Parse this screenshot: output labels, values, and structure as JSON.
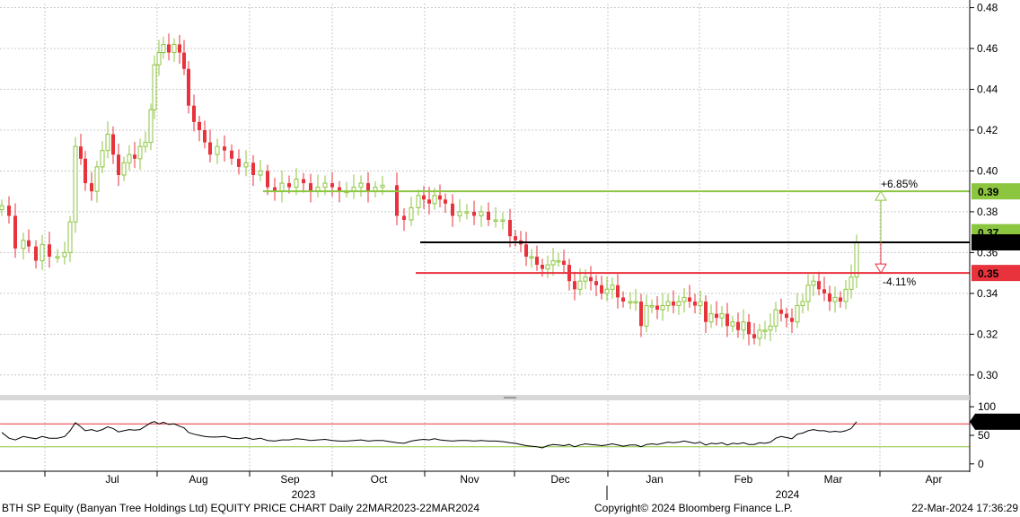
{
  "chart_data": {
    "type": "candlestick",
    "price_axis": {
      "ticks": [
        "0.48",
        "0.46",
        "0.44",
        "0.42",
        "0.40",
        "0.38",
        "0.36",
        "0.34",
        "0.32",
        "0.30"
      ],
      "ylim": [
        0.292,
        0.482
      ]
    },
    "rsi_axis": {
      "ticks": [
        "100",
        "50",
        "0"
      ],
      "ylim": [
        -5,
        105
      ]
    },
    "x_ticks": [
      "Jul",
      "Aug",
      "Sep",
      "Oct",
      "Nov",
      "Dec",
      "Jan",
      "Feb",
      "Mar",
      "Apr"
    ],
    "year_labels": [
      "2023",
      "2024"
    ],
    "grid": true,
    "levels": [
      {
        "value": 0.39,
        "label": "0.39",
        "color": "#8cc63f",
        "annotation": "+6.85%"
      },
      {
        "value": 0.37,
        "label": "0.37",
        "color": "#8cc63f",
        "annotation": ""
      },
      {
        "value": 0.365,
        "label": "0.365",
        "color": "#000000",
        "annotation": ""
      },
      {
        "value": 0.35,
        "label": "0.35",
        "color": "#e8323c",
        "annotation": "-4.11%"
      }
    ],
    "rsi_last": "73.8392",
    "rsi_levels": [
      70,
      30
    ],
    "up_color": "#8cc63f",
    "down_color": "#e8323c",
    "close_points": [
      [
        0,
        0.383
      ],
      [
        8,
        0.378
      ],
      [
        15,
        0.362
      ],
      [
        24,
        0.366
      ],
      [
        30,
        0.363
      ],
      [
        38,
        0.356
      ],
      [
        45,
        0.364
      ],
      [
        53,
        0.358
      ],
      [
        62,
        0.358
      ],
      [
        70,
        0.36
      ],
      [
        76,
        0.375
      ],
      [
        82,
        0.412
      ],
      [
        88,
        0.406
      ],
      [
        93,
        0.394
      ],
      [
        100,
        0.39
      ],
      [
        106,
        0.402
      ],
      [
        112,
        0.41
      ],
      [
        118,
        0.418
      ],
      [
        124,
        0.408
      ],
      [
        130,
        0.398
      ],
      [
        136,
        0.404
      ],
      [
        142,
        0.408
      ],
      [
        148,
        0.406
      ],
      [
        154,
        0.412
      ],
      [
        160,
        0.414
      ],
      [
        166,
        0.43
      ],
      [
        170,
        0.452
      ],
      [
        175,
        0.458
      ],
      [
        180,
        0.462
      ],
      [
        186,
        0.458
      ],
      [
        192,
        0.462
      ],
      [
        198,
        0.458
      ],
      [
        203,
        0.45
      ],
      [
        208,
        0.432
      ],
      [
        214,
        0.424
      ],
      [
        220,
        0.42
      ],
      [
        226,
        0.414
      ],
      [
        232,
        0.408
      ],
      [
        240,
        0.412
      ],
      [
        248,
        0.41
      ],
      [
        256,
        0.406
      ],
      [
        264,
        0.402
      ],
      [
        272,
        0.404
      ],
      [
        280,
        0.398
      ],
      [
        288,
        0.4
      ],
      [
        296,
        0.392
      ],
      [
        304,
        0.39
      ],
      [
        312,
        0.394
      ],
      [
        320,
        0.392
      ],
      [
        328,
        0.396
      ],
      [
        336,
        0.394
      ],
      [
        344,
        0.39
      ],
      [
        352,
        0.392
      ],
      [
        360,
        0.394
      ],
      [
        368,
        0.392
      ],
      [
        376,
        0.39
      ],
      [
        384,
        0.39
      ],
      [
        392,
        0.392
      ],
      [
        400,
        0.394
      ],
      [
        408,
        0.39
      ],
      [
        416,
        0.392
      ],
      [
        424,
        0.393
      ],
      [
        440,
        0.378
      ],
      [
        448,
        0.376
      ],
      [
        456,
        0.382
      ],
      [
        464,
        0.388
      ],
      [
        470,
        0.386
      ],
      [
        476,
        0.384
      ],
      [
        482,
        0.388
      ],
      [
        488,
        0.386
      ],
      [
        494,
        0.384
      ],
      [
        502,
        0.378
      ],
      [
        510,
        0.38
      ],
      [
        518,
        0.38
      ],
      [
        526,
        0.378
      ],
      [
        534,
        0.38
      ],
      [
        542,
        0.376
      ],
      [
        550,
        0.376
      ],
      [
        558,
        0.376
      ],
      [
        566,
        0.368
      ],
      [
        572,
        0.366
      ],
      [
        578,
        0.364
      ],
      [
        584,
        0.358
      ],
      [
        590,
        0.358
      ],
      [
        596,
        0.354
      ],
      [
        602,
        0.352
      ],
      [
        608,
        0.354
      ],
      [
        614,
        0.356
      ],
      [
        620,
        0.356
      ],
      [
        626,
        0.354
      ],
      [
        632,
        0.346
      ],
      [
        638,
        0.342
      ],
      [
        644,
        0.346
      ],
      [
        650,
        0.348
      ],
      [
        656,
        0.346
      ],
      [
        662,
        0.344
      ],
      [
        668,
        0.34
      ],
      [
        674,
        0.342
      ],
      [
        680,
        0.344
      ],
      [
        686,
        0.338
      ],
      [
        692,
        0.336
      ],
      [
        700,
        0.336
      ],
      [
        706,
        0.336
      ],
      [
        712,
        0.324
      ],
      [
        718,
        0.334
      ],
      [
        724,
        0.334
      ],
      [
        730,
        0.332
      ],
      [
        736,
        0.334
      ],
      [
        742,
        0.336
      ],
      [
        748,
        0.334
      ],
      [
        754,
        0.336
      ],
      [
        760,
        0.338
      ],
      [
        766,
        0.336
      ],
      [
        772,
        0.334
      ],
      [
        778,
        0.336
      ],
      [
        784,
        0.326
      ],
      [
        790,
        0.33
      ],
      [
        796,
        0.328
      ],
      [
        802,
        0.33
      ],
      [
        808,
        0.324
      ],
      [
        814,
        0.326
      ],
      [
        820,
        0.322
      ],
      [
        826,
        0.326
      ],
      [
        832,
        0.32
      ],
      [
        838,
        0.318
      ],
      [
        844,
        0.322
      ],
      [
        850,
        0.322
      ],
      [
        856,
        0.324
      ],
      [
        862,
        0.332
      ],
      [
        868,
        0.33
      ],
      [
        874,
        0.328
      ],
      [
        880,
        0.326
      ],
      [
        886,
        0.334
      ],
      [
        892,
        0.336
      ],
      [
        898,
        0.344
      ],
      [
        904,
        0.346
      ],
      [
        910,
        0.342
      ],
      [
        916,
        0.34
      ],
      [
        922,
        0.336
      ],
      [
        928,
        0.338
      ],
      [
        934,
        0.336
      ],
      [
        940,
        0.342
      ],
      [
        946,
        0.348
      ],
      [
        952,
        0.365
      ]
    ],
    "rsi_points": [
      [
        0,
        55
      ],
      [
        8,
        45
      ],
      [
        15,
        42
      ],
      [
        24,
        48
      ],
      [
        30,
        46
      ],
      [
        38,
        44
      ],
      [
        45,
        48
      ],
      [
        53,
        45
      ],
      [
        62,
        45
      ],
      [
        70,
        48
      ],
      [
        76,
        58
      ],
      [
        82,
        72
      ],
      [
        88,
        65
      ],
      [
        93,
        58
      ],
      [
        100,
        60
      ],
      [
        106,
        57
      ],
      [
        112,
        60
      ],
      [
        118,
        65
      ],
      [
        124,
        62
      ],
      [
        130,
        56
      ],
      [
        136,
        58
      ],
      [
        142,
        60
      ],
      [
        148,
        59
      ],
      [
        154,
        60
      ],
      [
        160,
        66
      ],
      [
        166,
        72
      ],
      [
        170,
        74
      ],
      [
        175,
        70
      ],
      [
        180,
        73
      ],
      [
        186,
        69
      ],
      [
        192,
        70
      ],
      [
        198,
        66
      ],
      [
        203,
        63
      ],
      [
        208,
        55
      ],
      [
        214,
        52
      ],
      [
        220,
        50
      ],
      [
        226,
        48
      ],
      [
        232,
        47
      ],
      [
        240,
        47
      ],
      [
        248,
        48
      ],
      [
        256,
        45
      ],
      [
        264,
        44
      ],
      [
        272,
        46
      ],
      [
        280,
        43
      ],
      [
        288,
        45
      ],
      [
        296,
        41
      ],
      [
        304,
        40
      ],
      [
        312,
        42
      ],
      [
        320,
        42
      ],
      [
        328,
        44
      ],
      [
        336,
        43
      ],
      [
        344,
        41
      ],
      [
        352,
        42
      ],
      [
        360,
        43
      ],
      [
        368,
        41
      ],
      [
        376,
        40
      ],
      [
        384,
        40
      ],
      [
        392,
        41
      ],
      [
        400,
        42
      ],
      [
        408,
        40
      ],
      [
        416,
        41
      ],
      [
        424,
        41
      ],
      [
        440,
        37
      ],
      [
        448,
        36
      ],
      [
        456,
        40
      ],
      [
        464,
        42
      ],
      [
        470,
        43
      ],
      [
        476,
        42
      ],
      [
        482,
        44
      ],
      [
        488,
        42
      ],
      [
        494,
        41
      ],
      [
        502,
        40
      ],
      [
        510,
        41
      ],
      [
        518,
        41
      ],
      [
        526,
        40
      ],
      [
        534,
        41
      ],
      [
        542,
        40
      ],
      [
        550,
        40
      ],
      [
        558,
        39
      ],
      [
        566,
        37
      ],
      [
        572,
        36
      ],
      [
        578,
        34
      ],
      [
        584,
        32
      ],
      [
        590,
        31
      ],
      [
        596,
        30
      ],
      [
        602,
        28
      ],
      [
        608,
        32
      ],
      [
        614,
        34
      ],
      [
        620,
        33
      ],
      [
        626,
        32
      ],
      [
        632,
        34
      ],
      [
        638,
        30
      ],
      [
        644,
        33
      ],
      [
        650,
        35
      ],
      [
        656,
        34
      ],
      [
        662,
        33
      ],
      [
        668,
        32
      ],
      [
        674,
        33
      ],
      [
        680,
        35
      ],
      [
        686,
        33
      ],
      [
        692,
        31
      ],
      [
        700,
        33
      ],
      [
        706,
        33
      ],
      [
        712,
        30
      ],
      [
        718,
        34
      ],
      [
        724,
        35
      ],
      [
        730,
        34
      ],
      [
        736,
        36
      ],
      [
        742,
        38
      ],
      [
        748,
        37
      ],
      [
        754,
        38
      ],
      [
        760,
        40
      ],
      [
        766,
        38
      ],
      [
        772,
        36
      ],
      [
        778,
        38
      ],
      [
        784,
        33
      ],
      [
        790,
        36
      ],
      [
        796,
        35
      ],
      [
        802,
        37
      ],
      [
        808,
        33
      ],
      [
        814,
        36
      ],
      [
        820,
        35
      ],
      [
        826,
        37
      ],
      [
        832,
        34
      ],
      [
        838,
        34
      ],
      [
        844,
        37
      ],
      [
        850,
        36
      ],
      [
        856,
        38
      ],
      [
        862,
        45
      ],
      [
        868,
        48
      ],
      [
        874,
        46
      ],
      [
        880,
        44
      ],
      [
        886,
        52
      ],
      [
        892,
        54
      ],
      [
        898,
        58
      ],
      [
        904,
        60
      ],
      [
        910,
        58
      ],
      [
        916,
        58
      ],
      [
        922,
        56
      ],
      [
        928,
        57
      ],
      [
        934,
        56
      ],
      [
        940,
        58
      ],
      [
        946,
        62
      ],
      [
        952,
        73.84
      ]
    ]
  },
  "footer": {
    "title": "BTH SP Equity (Banyan Tree Holdings Ltd) EQUITY PRICE CHART  Daily 22MAR2023-22MAR2024",
    "copyright": "Copyright© 2024 Bloomberg Finance L.P.",
    "timestamp": "22-Mar-2024 17:36:29"
  }
}
